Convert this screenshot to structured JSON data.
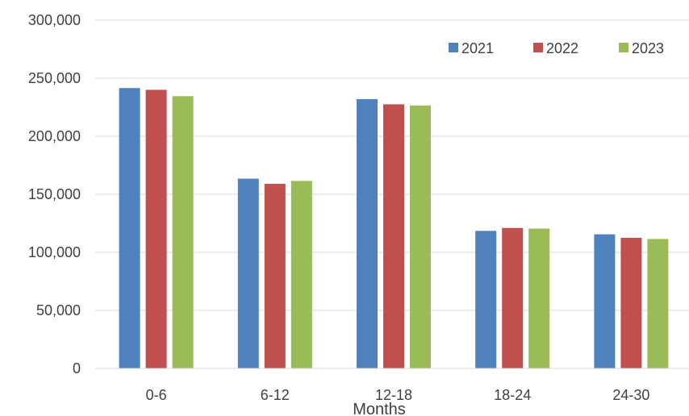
{
  "chart_data": {
    "type": "bar",
    "title": "",
    "xlabel": "Months",
    "ylabel": "",
    "categories": [
      "0-6",
      "6-12",
      "12-18",
      "18-24",
      "24-30"
    ],
    "series": [
      {
        "name": "2021",
        "color": "#4F81BD",
        "values": [
          241500,
          163500,
          232000,
          118500,
          115500
        ]
      },
      {
        "name": "2022",
        "color": "#C0504D",
        "values": [
          240000,
          159000,
          227500,
          121000,
          112500
        ]
      },
      {
        "name": "2023",
        "color": "#9BBB59",
        "values": [
          234500,
          161500,
          226500,
          120500,
          111500
        ]
      }
    ],
    "ylim": [
      0,
      300000
    ],
    "yticks": [
      0,
      50000,
      100000,
      150000,
      200000,
      250000,
      300000
    ],
    "ytick_labels": [
      "0",
      "50,000",
      "100,000",
      "150,000",
      "200,000",
      "250,000",
      "300,000"
    ],
    "grid": true,
    "legend_position": "top-right"
  }
}
